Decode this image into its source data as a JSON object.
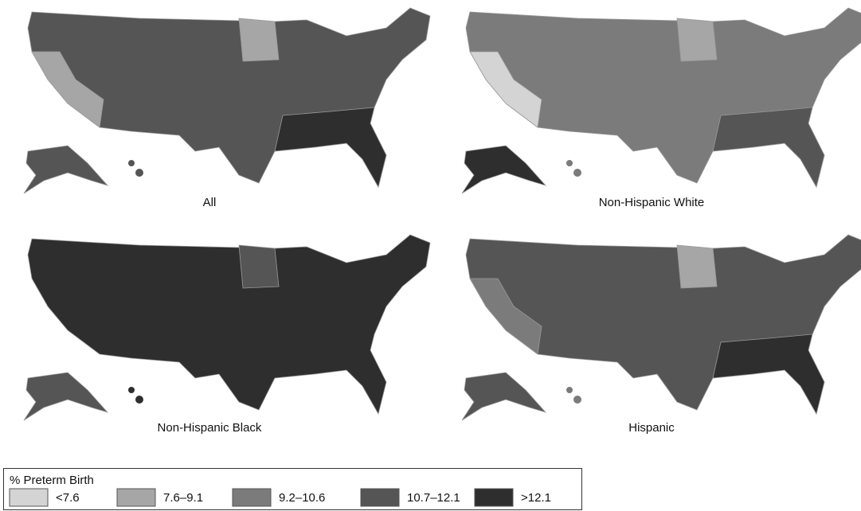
{
  "panels": [
    {
      "title": "All"
    },
    {
      "title": "Non-Hispanic White"
    },
    {
      "title": "Non-Hispanic Black"
    },
    {
      "title": "Hispanic"
    }
  ],
  "legend": {
    "title": "% Preterm Birth",
    "items": [
      {
        "label": "<7.6",
        "color": "#d4d4d4"
      },
      {
        "label": "7.6–9.1",
        "color": "#a6a6a6"
      },
      {
        "label": "9.2–10.6",
        "color": "#7b7b7b"
      },
      {
        "label": "10.7–12.1",
        "color": "#555555"
      },
      {
        "label": ">12.1",
        "color": "#2e2e2e"
      }
    ]
  }
}
